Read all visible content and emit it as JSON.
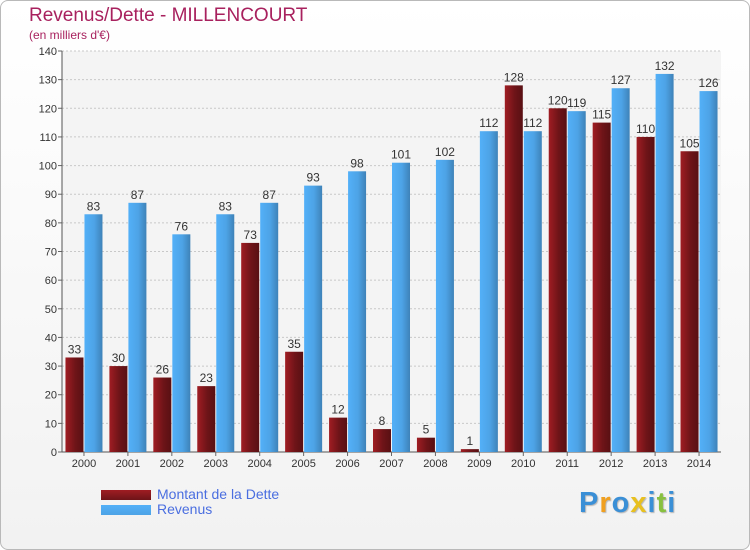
{
  "chart_data": {
    "type": "bar",
    "title": "Revenus/Dette - MILLENCOURT",
    "subtitle": "(en milliers d'€)",
    "categories": [
      "2000",
      "2001",
      "2002",
      "2003",
      "2004",
      "2005",
      "2006",
      "2007",
      "2008",
      "2009",
      "2010",
      "2011",
      "2012",
      "2013",
      "2014"
    ],
    "series": [
      {
        "name": "Montant de la Dette",
        "color": "#6e1418",
        "values": [
          33,
          30,
          26,
          23,
          73,
          35,
          12,
          8,
          5,
          1,
          128,
          120,
          115,
          110,
          105
        ]
      },
      {
        "name": "Revenus",
        "color": "#4da3e6",
        "values": [
          83,
          87,
          76,
          83,
          87,
          93,
          98,
          101,
          102,
          112,
          112,
          119,
          127,
          132,
          126
        ]
      }
    ],
    "ylim": [
      0,
      140
    ],
    "yticks": [
      0,
      10,
      20,
      30,
      40,
      50,
      60,
      70,
      80,
      90,
      100,
      110,
      120,
      130,
      140
    ],
    "grid": true,
    "legend_position": "bottom-left"
  },
  "logo": {
    "letters": [
      {
        "ch": "P",
        "color": "#3a8fd6"
      },
      {
        "ch": "r",
        "color": "#f0a020"
      },
      {
        "ch": "o",
        "color": "#3a8fd6"
      },
      {
        "ch": "x",
        "color": "#e8c020"
      },
      {
        "ch": "i",
        "color": "#3a8fd6"
      },
      {
        "ch": "t",
        "color": "#88c040"
      },
      {
        "ch": "i",
        "color": "#3a8fd6"
      }
    ]
  }
}
